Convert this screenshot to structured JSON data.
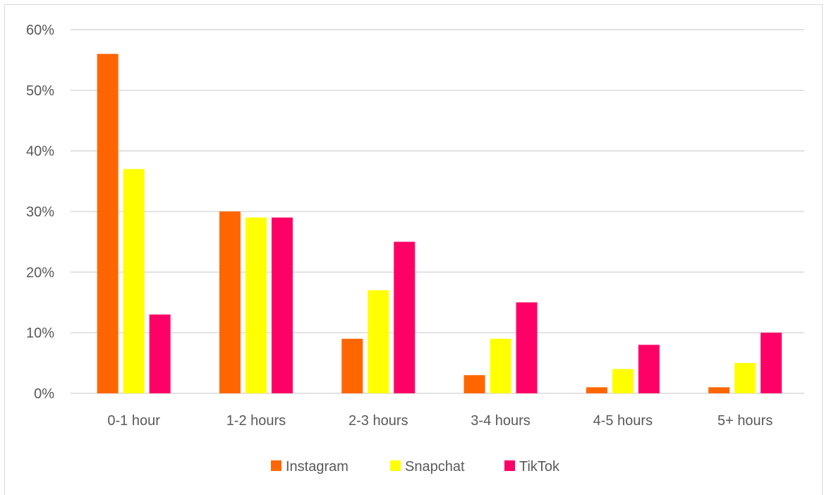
{
  "chart_data": {
    "type": "bar",
    "title": "",
    "xlabel": "",
    "ylabel": "",
    "categories": [
      "0-1 hour",
      "1-2 hours",
      "2-3 hours",
      "3-4 hours",
      "4-5 hours",
      "5+ hours"
    ],
    "series": [
      {
        "name": "Instagram",
        "color": "#FF6600",
        "values": [
          56,
          30,
          9,
          3,
          1,
          1
        ]
      },
      {
        "name": "Snapchat",
        "color": "#FFFF00",
        "values": [
          37,
          29,
          17,
          9,
          4,
          5
        ]
      },
      {
        "name": "TikTok",
        "color": "#FF0066",
        "values": [
          13,
          29,
          25,
          15,
          8,
          10
        ]
      }
    ],
    "ylim": [
      0,
      60
    ],
    "yticks": [
      0,
      10,
      20,
      30,
      40,
      50,
      60
    ],
    "ytick_labels": [
      "0%",
      "10%",
      "20%",
      "30%",
      "40%",
      "50%",
      "60%"
    ],
    "y_unit": "%",
    "grid": true,
    "gridline_color": "#d9d9d9",
    "legend_position": "bottom"
  }
}
